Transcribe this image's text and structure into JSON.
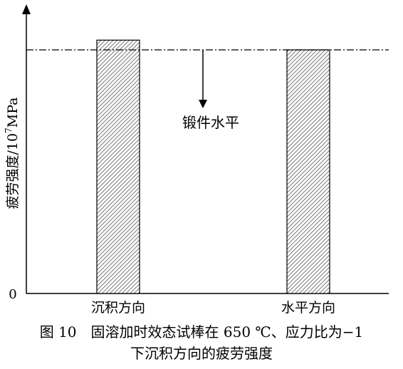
{
  "chart_data": {
    "type": "bar",
    "categories": [
      "沉积方向",
      "水平方向"
    ],
    "values": [
      1.04,
      1.0
    ],
    "ylabel_main": "疲劳强度/10",
    "ylabel_sup": "7",
    "ylabel_unit": "MPa",
    "y_tick_labels": [
      "0"
    ],
    "ylim": [
      0,
      1.2
    ],
    "reference_line": {
      "value": 1.0,
      "style": "dash-dot"
    },
    "annotation": {
      "text": "锻件水平",
      "arrow": "down"
    },
    "bar_pattern": "diagonal-hatch",
    "grid": false
  },
  "caption": {
    "line1": "图 10　固溶加时效态试棒在 650 ℃、应力比为−1",
    "line2": "下沉积方向的疲劳强度"
  }
}
